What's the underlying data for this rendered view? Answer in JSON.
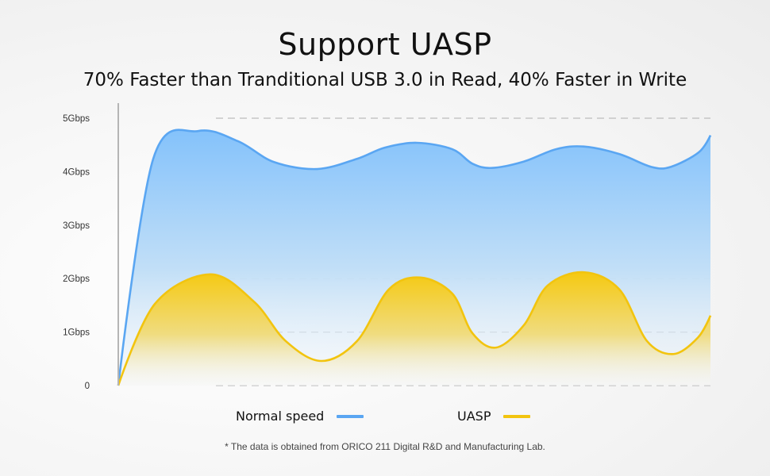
{
  "title": "Support UASP",
  "subtitle": "70% Faster than Tranditional USB 3.0 in Read, 40% Faster in Write",
  "footnote": "* The data is obtained from ORICO 211 Digital R&D and Manufacturing Lab.",
  "colors": {
    "normal": "#5aa6f2",
    "uasp": "#f2c40f"
  },
  "chart_data": {
    "type": "area",
    "title": "Support UASP",
    "xlabel": "",
    "ylabel": "",
    "ylim": [
      0,
      5
    ],
    "yticks": [
      {
        "v": 0,
        "label": "0"
      },
      {
        "v": 1,
        "label": "1Gbps"
      },
      {
        "v": 2,
        "label": "2Gbps"
      },
      {
        "v": 3,
        "label": "3Gbps"
      },
      {
        "v": 4,
        "label": "4Gbps"
      },
      {
        "v": 5,
        "label": "5Gbps"
      }
    ],
    "grid": true,
    "legend": "bottom",
    "series": [
      {
        "name": "Normal speed",
        "color": "#5aa6f2",
        "x": [
          0,
          5.9,
          13.5,
          20.2,
          26.3,
          33.6,
          40.3,
          45,
          50.4,
          56.4,
          59.8,
          63.1,
          68.5,
          73.9,
          78.6,
          84.6,
          90,
          93.3,
          98,
          100
        ],
        "y": [
          0,
          4.24,
          4.76,
          4.57,
          4.18,
          4.05,
          4.24,
          4.45,
          4.54,
          4.42,
          4.15,
          4.07,
          4.19,
          4.42,
          4.47,
          4.33,
          4.09,
          4.09,
          4.36,
          4.68
        ]
      },
      {
        "name": "UASP",
        "color": "#f2c40f",
        "x": [
          0,
          6.2,
          15.5,
          22.9,
          28.3,
          34.3,
          40.3,
          45.7,
          51,
          56.4,
          59.8,
          63.8,
          68.5,
          72.5,
          78.6,
          84.6,
          89.3,
          93.8,
          97.9,
          100
        ],
        "y": [
          0,
          1.53,
          2.08,
          1.57,
          0.83,
          0.46,
          0.83,
          1.8,
          2.02,
          1.72,
          0.98,
          0.71,
          1.13,
          1.87,
          2.12,
          1.8,
          0.83,
          0.59,
          0.9,
          1.31
        ]
      }
    ]
  }
}
